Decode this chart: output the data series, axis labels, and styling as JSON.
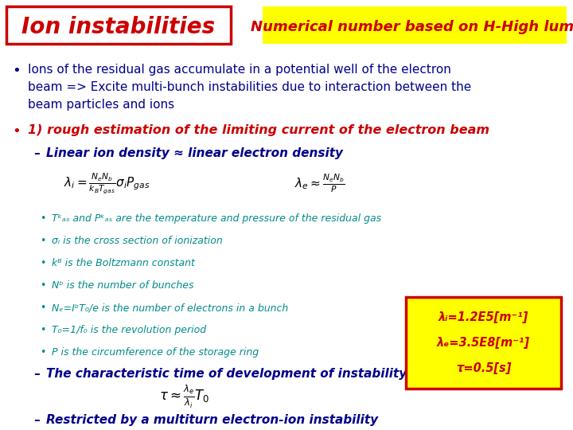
{
  "title_left": "Ion instabilities",
  "title_right": "Numerical number based on H-High lumi",
  "title_left_color": "#cc0000",
  "title_left_bg": "#ffffff",
  "title_left_border": "#cc0000",
  "title_right_color": "#cc0000",
  "title_right_bg": "#ffff00",
  "slide_bg": "#ffffff",
  "bullet1_color": "#00008b",
  "bullet1_lines": [
    "Ions of the residual gas accumulate in a potential well of the electron",
    "beam => Excite multi-bunch instabilities due to interaction between the",
    "beam particles and ions"
  ],
  "bullet2_color": "#cc0000",
  "bullet2_text": "1) rough estimation of the limiting current of the electron beam",
  "dash1_color": "#00008b",
  "dash1_text": "Linear ion density ≈ linear electron density",
  "formula1_text": "λᵢ =  ⁿₑⁿᵇ  σᵢ Pᵏₐₛ",
  "formula1_denom": "  kᴮ Tᵏₐₛ",
  "formula2_text": "λₑ ≈  Nₑ Nᵇ",
  "formula2_denom": "         P",
  "sub_bullets": [
    "Tᵏₐₛ and Pᵏₐₛ are the temperature and pressure of the residual gas",
    "σᵢ is the cross section of ionization",
    "kᴮ is the Boltzmann constant",
    "Nᵇ is the number of bunches",
    "Nₑ=IᵇT₀/e is the number of electrons in a bunch",
    "T₀=1/f₀ is the revolution period",
    "P is the circumference of the storage ring"
  ],
  "sub_bullet_color": "#008b8b",
  "dash2_text": "The characteristic time of development of instability",
  "dash2_color": "#00008b",
  "dash3_text": "Restricted by a multiturn electron-ion instability",
  "dash3_color": "#00008b",
  "box_bg": "#ffff00",
  "box_border": "#cc0000",
  "box_line1": "λᵢ=1.2E5[m⁻¹]",
  "box_line2": "λₑ=3.5E8[m⁻¹]",
  "box_line3": "τ=0.5[s]",
  "box_text_color": "#cc0000"
}
